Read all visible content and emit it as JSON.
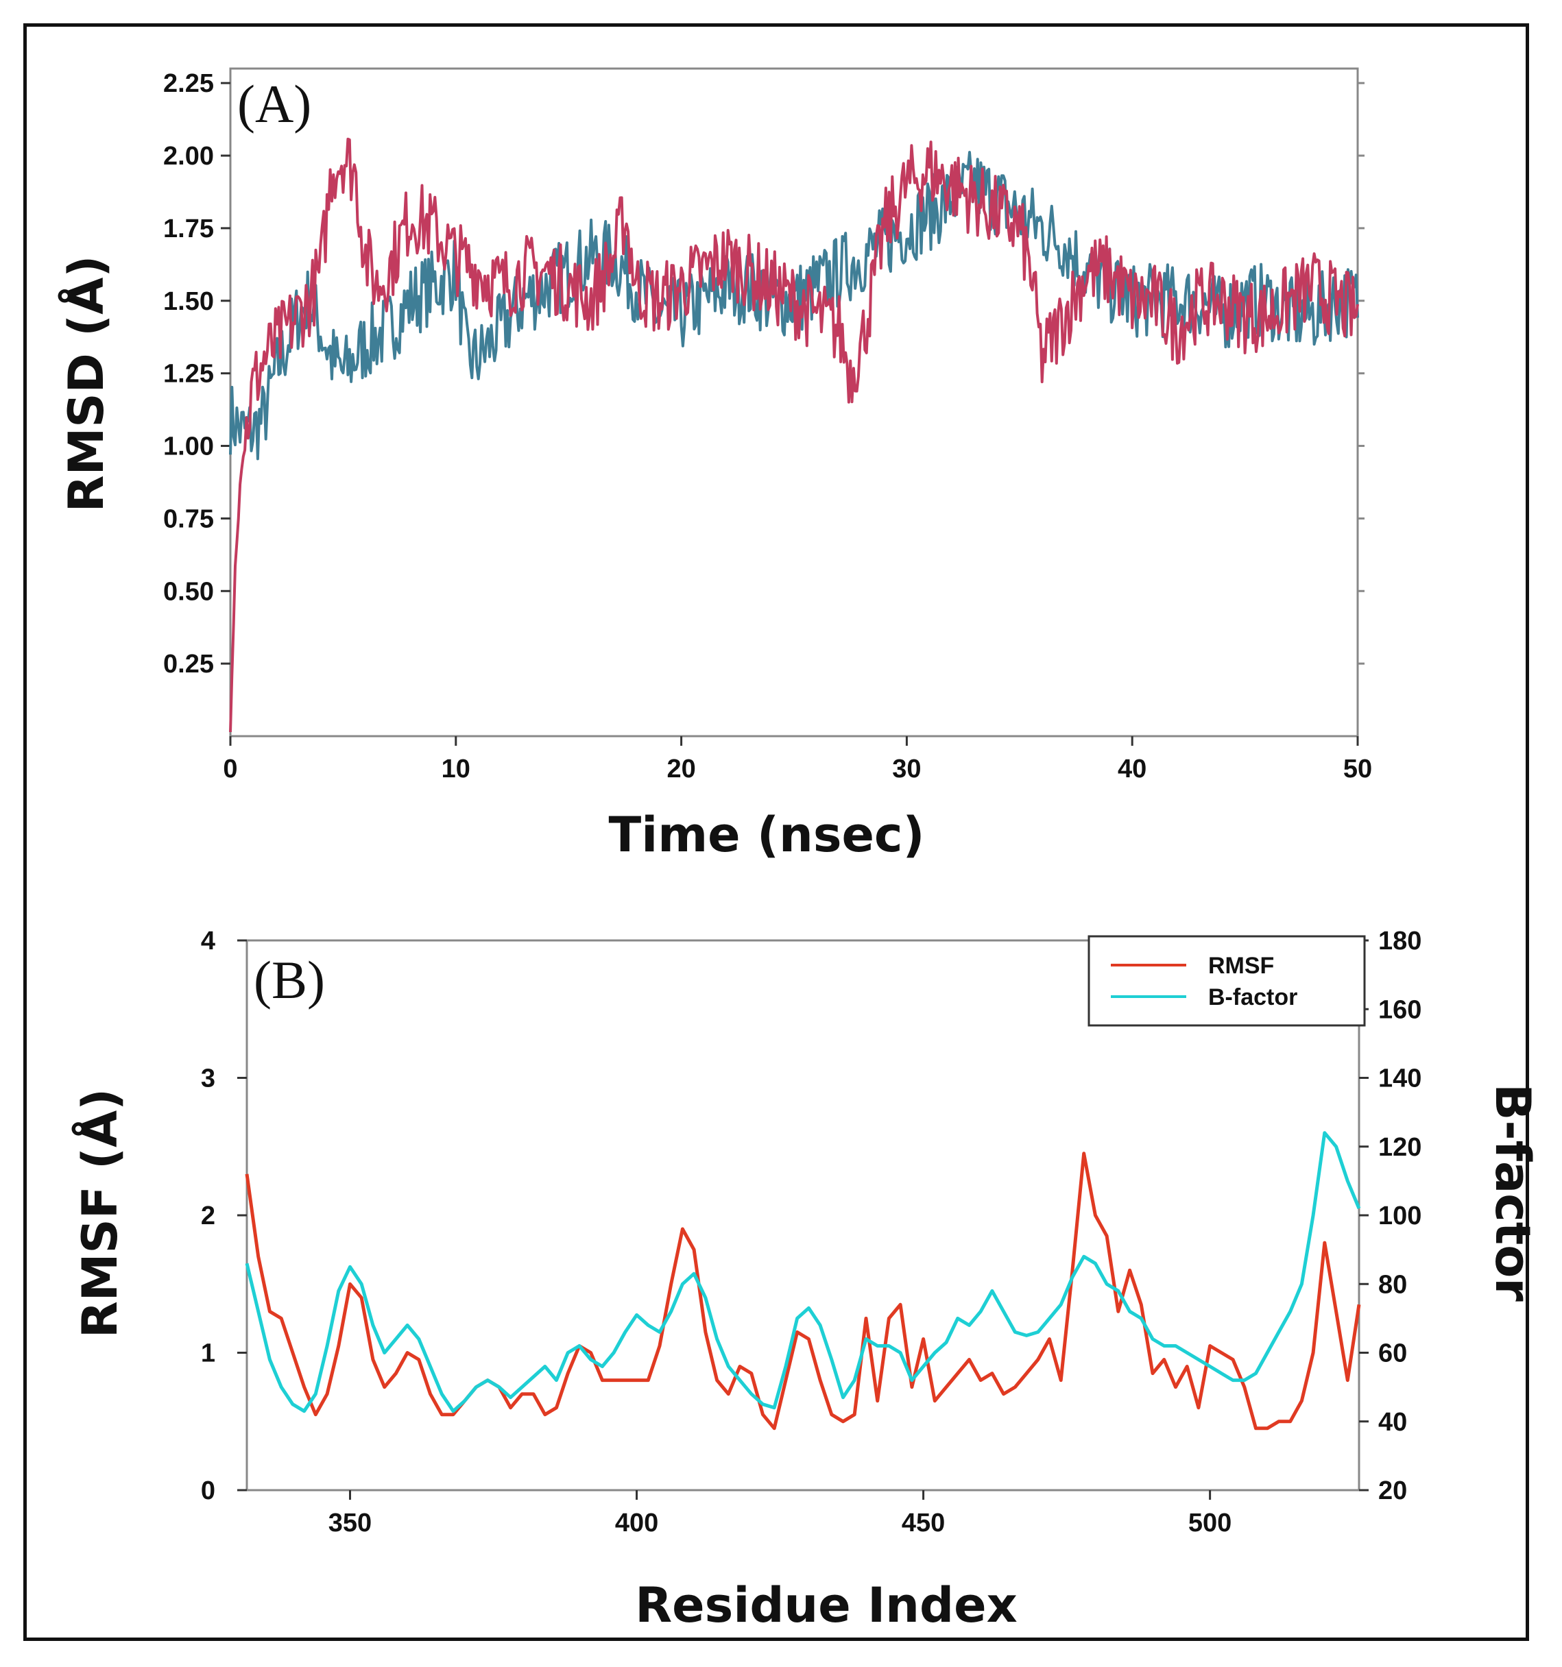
{
  "chart_data": [
    {
      "type": "line",
      "panel_label": "(A)",
      "title": "",
      "xlabel": "Time (nsec)",
      "ylabel": "RMSD (Å)",
      "xlim": [
        0,
        50
      ],
      "ylim": [
        0,
        2.3
      ],
      "xticks": [
        "0",
        "10",
        "20",
        "30",
        "40",
        "50"
      ],
      "yticks": [
        "0.25",
        "0.50",
        "0.75",
        "1.00",
        "1.25",
        "1.50",
        "1.75",
        "2.00",
        "2.25"
      ],
      "legend": "none",
      "series": [
        {
          "name": "blue trajectory",
          "color": "#3f7e96",
          "x": [
            0,
            0.5,
            1,
            1.5,
            2,
            2.5,
            3,
            3.5,
            4,
            4.5,
            5,
            5.5,
            6,
            7,
            8,
            9,
            10,
            10.5,
            11,
            12,
            13,
            14,
            15,
            16,
            17,
            18,
            19,
            20,
            21,
            22,
            23,
            24,
            25,
            26,
            27,
            28,
            29,
            30,
            31,
            32,
            33,
            34,
            35,
            36,
            37,
            38,
            39,
            40,
            41,
            42,
            43,
            44,
            45,
            46,
            47,
            48,
            49,
            50
          ],
          "y": [
            1.1,
            1.05,
            1.05,
            1.1,
            1.25,
            1.35,
            1.45,
            1.5,
            1.4,
            1.3,
            1.25,
            1.3,
            1.35,
            1.4,
            1.5,
            1.55,
            1.6,
            1.3,
            1.3,
            1.4,
            1.5,
            1.55,
            1.6,
            1.65,
            1.65,
            1.55,
            1.45,
            1.45,
            1.5,
            1.55,
            1.55,
            1.5,
            1.5,
            1.55,
            1.6,
            1.65,
            1.7,
            1.75,
            1.8,
            1.85,
            1.9,
            1.85,
            1.8,
            1.75,
            1.7,
            1.6,
            1.55,
            1.5,
            1.5,
            1.5,
            1.5,
            1.45,
            1.5,
            1.5,
            1.45,
            1.45,
            1.5,
            1.5
          ]
        },
        {
          "name": "red trajectory",
          "color": "#c23b5e",
          "x": [
            0,
            0.2,
            0.5,
            1,
            1.5,
            2,
            3,
            3.5,
            4,
            4.5,
            5,
            5.5,
            6,
            6.5,
            7,
            8,
            9,
            10,
            11,
            12,
            13,
            14,
            15,
            16,
            17,
            17.5,
            18,
            19,
            20,
            21,
            22,
            23,
            24,
            25,
            26,
            27,
            27.5,
            28,
            29,
            30,
            31,
            32,
            33,
            34,
            35,
            35.5,
            36,
            37,
            38,
            39,
            40,
            41,
            42,
            43,
            44,
            45,
            46,
            47,
            48,
            49,
            50
          ],
          "y": [
            0.0,
            0.6,
            0.95,
            1.2,
            1.3,
            1.35,
            1.45,
            1.5,
            1.6,
            1.95,
            2.0,
            1.95,
            1.65,
            1.55,
            1.6,
            1.8,
            1.75,
            1.65,
            1.6,
            1.55,
            1.6,
            1.6,
            1.55,
            1.5,
            1.65,
            1.8,
            1.55,
            1.5,
            1.55,
            1.6,
            1.65,
            1.6,
            1.55,
            1.5,
            1.45,
            1.4,
            1.25,
            1.35,
            1.75,
            1.9,
            1.95,
            1.9,
            1.85,
            1.8,
            1.75,
            1.6,
            1.3,
            1.45,
            1.6,
            1.6,
            1.5,
            1.5,
            1.4,
            1.5,
            1.5,
            1.45,
            1.45,
            1.5,
            1.55,
            1.5,
            1.45
          ]
        }
      ]
    },
    {
      "type": "line",
      "panel_label": "(B)",
      "title": "",
      "xlabel": "Residue Index",
      "ylabel": "RMSF (Å)",
      "y2label": "B-factor",
      "xlim": [
        332,
        526
      ],
      "ylim": [
        0,
        4
      ],
      "y2lim": [
        20,
        180
      ],
      "xticks": [
        "350",
        "400",
        "450",
        "500"
      ],
      "yticks": [
        "0",
        "1",
        "2",
        "3",
        "4"
      ],
      "y2ticks": [
        "20",
        "40",
        "60",
        "80",
        "100",
        "120",
        "140",
        "160",
        "180"
      ],
      "legend": "top-right",
      "series": [
        {
          "name": "RMSF",
          "color": "#e03a22",
          "axis": "left",
          "x": [
            332,
            334,
            336,
            338,
            340,
            342,
            344,
            346,
            348,
            350,
            352,
            354,
            356,
            358,
            360,
            362,
            364,
            366,
            368,
            370,
            372,
            374,
            376,
            378,
            380,
            382,
            384,
            386,
            388,
            390,
            392,
            394,
            396,
            398,
            400,
            402,
            404,
            406,
            408,
            410,
            412,
            414,
            416,
            418,
            420,
            422,
            424,
            426,
            428,
            430,
            432,
            434,
            436,
            438,
            440,
            442,
            444,
            446,
            448,
            450,
            452,
            454,
            456,
            458,
            460,
            462,
            464,
            466,
            468,
            470,
            472,
            474,
            476,
            478,
            480,
            482,
            484,
            486,
            488,
            490,
            492,
            494,
            496,
            498,
            500,
            502,
            504,
            506,
            508,
            510,
            512,
            514,
            516,
            518,
            520,
            522,
            524,
            526
          ],
          "y": [
            2.3,
            1.7,
            1.3,
            1.25,
            1.0,
            0.75,
            0.55,
            0.7,
            1.05,
            1.5,
            1.4,
            0.95,
            0.75,
            0.85,
            1.0,
            0.95,
            0.7,
            0.55,
            0.55,
            0.65,
            0.75,
            0.8,
            0.75,
            0.6,
            0.7,
            0.7,
            0.55,
            0.6,
            0.85,
            1.05,
            1.0,
            0.8,
            0.8,
            0.8,
            0.8,
            0.8,
            1.05,
            1.5,
            1.9,
            1.75,
            1.15,
            0.8,
            0.7,
            0.9,
            0.85,
            0.55,
            0.45,
            0.8,
            1.15,
            1.1,
            0.8,
            0.55,
            0.5,
            0.55,
            1.25,
            0.65,
            1.25,
            1.35,
            0.75,
            1.1,
            0.65,
            0.75,
            0.85,
            0.95,
            0.8,
            0.85,
            0.7,
            0.75,
            0.85,
            0.95,
            1.1,
            0.8,
            1.6,
            2.45,
            2.0,
            1.85,
            1.3,
            1.6,
            1.35,
            0.85,
            0.95,
            0.75,
            0.9,
            0.6,
            1.05,
            1.0,
            0.95,
            0.75,
            0.45,
            0.45,
            0.5,
            0.5,
            0.65,
            1.0,
            1.8,
            1.3,
            0.8,
            1.35
          ]
        },
        {
          "name": "B-factor",
          "color": "#1ecfd4",
          "axis": "right",
          "x": [
            332,
            334,
            336,
            338,
            340,
            342,
            344,
            346,
            348,
            350,
            352,
            354,
            356,
            358,
            360,
            362,
            364,
            366,
            368,
            370,
            372,
            374,
            376,
            378,
            380,
            382,
            384,
            386,
            388,
            390,
            392,
            394,
            396,
            398,
            400,
            402,
            404,
            406,
            408,
            410,
            412,
            414,
            416,
            418,
            420,
            422,
            424,
            426,
            428,
            430,
            432,
            434,
            436,
            438,
            440,
            442,
            444,
            446,
            448,
            450,
            452,
            454,
            456,
            458,
            460,
            462,
            464,
            466,
            468,
            470,
            472,
            474,
            476,
            478,
            480,
            482,
            484,
            486,
            488,
            490,
            492,
            494,
            496,
            498,
            500,
            502,
            504,
            506,
            508,
            510,
            512,
            514,
            516,
            518,
            520,
            522,
            524,
            526
          ],
          "y": [
            86,
            72,
            58,
            50,
            45,
            43,
            48,
            62,
            78,
            85,
            80,
            68,
            60,
            64,
            68,
            64,
            56,
            48,
            43,
            46,
            50,
            52,
            50,
            47,
            50,
            53,
            56,
            52,
            60,
            62,
            58,
            56,
            60,
            66,
            71,
            68,
            66,
            72,
            80,
            83,
            76,
            64,
            56,
            52,
            48,
            45,
            44,
            56,
            70,
            73,
            68,
            58,
            47,
            52,
            64,
            62,
            62,
            60,
            52,
            56,
            60,
            63,
            70,
            68,
            72,
            78,
            72,
            66,
            65,
            66,
            70,
            74,
            82,
            88,
            86,
            80,
            78,
            72,
            70,
            64,
            62,
            62,
            60,
            58,
            56,
            54,
            52,
            52,
            54,
            60,
            66,
            72,
            80,
            100,
            124,
            120,
            110,
            102
          ]
        }
      ]
    }
  ]
}
